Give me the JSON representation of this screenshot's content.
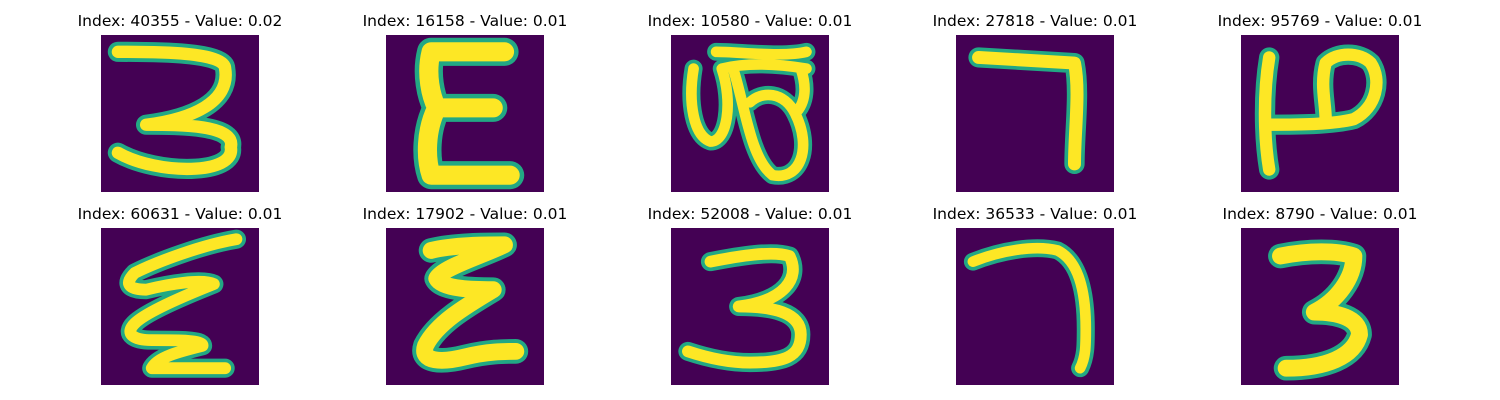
{
  "figure": {
    "background": "#ffffff",
    "image_bg": "#440154",
    "stroke_outer": "#22a884",
    "stroke_inner": "#fde725"
  },
  "panels": [
    {
      "title": "Index: 40355 - Value: 0.02",
      "glyph": "three-looped-top"
    },
    {
      "title": "Index: 16158 - Value: 0.01",
      "glyph": "epsilon-bold"
    },
    {
      "title": "Index: 10580 - Value: 0.01",
      "glyph": "double-loop"
    },
    {
      "title": "Index: 27818 - Value: 0.01",
      "glyph": "seven"
    },
    {
      "title": "Index: 95769 - Value: 0.01",
      "glyph": "h-hook"
    },
    {
      "title": "Index: 60631 - Value: 0.01",
      "glyph": "epsilon-zigzag"
    },
    {
      "title": "Index: 17902 - Value: 0.01",
      "glyph": "epsilon-scribble"
    },
    {
      "title": "Index: 52008 - Value: 0.01",
      "glyph": "three-wide"
    },
    {
      "title": "Index: 36533 - Value: 0.01",
      "glyph": "seven-curved"
    },
    {
      "title": "Index: 8790 - Value: 0.01",
      "glyph": "three-bold"
    }
  ]
}
